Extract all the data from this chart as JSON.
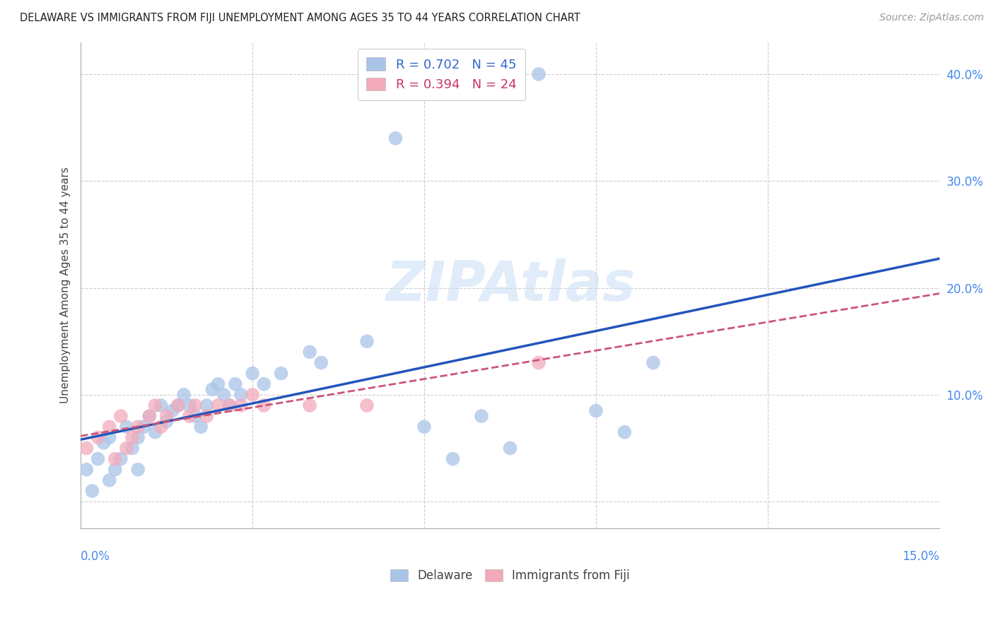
{
  "title": "DELAWARE VS IMMIGRANTS FROM FIJI UNEMPLOYMENT AMONG AGES 35 TO 44 YEARS CORRELATION CHART",
  "source": "Source: ZipAtlas.com",
  "ylabel": "Unemployment Among Ages 35 to 44 years",
  "watermark": "ZIPAtlas",
  "legend_delaware": "Delaware",
  "legend_fiji": "Immigrants from Fiji",
  "delaware_color": "#aac4e8",
  "fiji_color": "#f2aabb",
  "delaware_line_color": "#2255bb",
  "fiji_line_color": "#cc5577",
  "background_color": "#ffffff",
  "grid_color": "#cccccc",
  "xlim": [
    0.0,
    0.15
  ],
  "ylim": [
    -0.025,
    0.43
  ],
  "yticks": [
    0.0,
    0.1,
    0.2,
    0.3,
    0.4
  ],
  "ytick_labels": [
    "",
    "10.0%",
    "20.0%",
    "30.0%",
    "40.0%"
  ],
  "delaware_x": [
    0.001,
    0.002,
    0.003,
    0.004,
    0.005,
    0.005,
    0.006,
    0.007,
    0.008,
    0.009,
    0.01,
    0.01,
    0.011,
    0.012,
    0.013,
    0.014,
    0.015,
    0.016,
    0.017,
    0.018,
    0.019,
    0.02,
    0.021,
    0.022,
    0.023,
    0.024,
    0.025,
    0.026,
    0.027,
    0.028,
    0.03,
    0.032,
    0.035,
    0.04,
    0.042,
    0.05,
    0.055,
    0.06,
    0.065,
    0.07,
    0.075,
    0.08,
    0.09,
    0.095,
    0.1
  ],
  "delaware_y": [
    0.03,
    0.01,
    0.04,
    0.055,
    0.02,
    0.06,
    0.03,
    0.04,
    0.07,
    0.05,
    0.06,
    0.03,
    0.07,
    0.08,
    0.065,
    0.09,
    0.075,
    0.085,
    0.09,
    0.1,
    0.09,
    0.08,
    0.07,
    0.09,
    0.105,
    0.11,
    0.1,
    0.09,
    0.11,
    0.1,
    0.12,
    0.11,
    0.12,
    0.14,
    0.13,
    0.15,
    0.34,
    0.07,
    0.04,
    0.08,
    0.05,
    0.4,
    0.085,
    0.065,
    0.13
  ],
  "fiji_x": [
    0.001,
    0.003,
    0.005,
    0.006,
    0.007,
    0.008,
    0.009,
    0.01,
    0.012,
    0.013,
    0.014,
    0.015,
    0.017,
    0.019,
    0.02,
    0.022,
    0.024,
    0.026,
    0.028,
    0.03,
    0.032,
    0.04,
    0.05,
    0.08
  ],
  "fiji_y": [
    0.05,
    0.06,
    0.07,
    0.04,
    0.08,
    0.05,
    0.06,
    0.07,
    0.08,
    0.09,
    0.07,
    0.08,
    0.09,
    0.08,
    0.09,
    0.08,
    0.09,
    0.09,
    0.09,
    0.1,
    0.09,
    0.09,
    0.09,
    0.13
  ]
}
